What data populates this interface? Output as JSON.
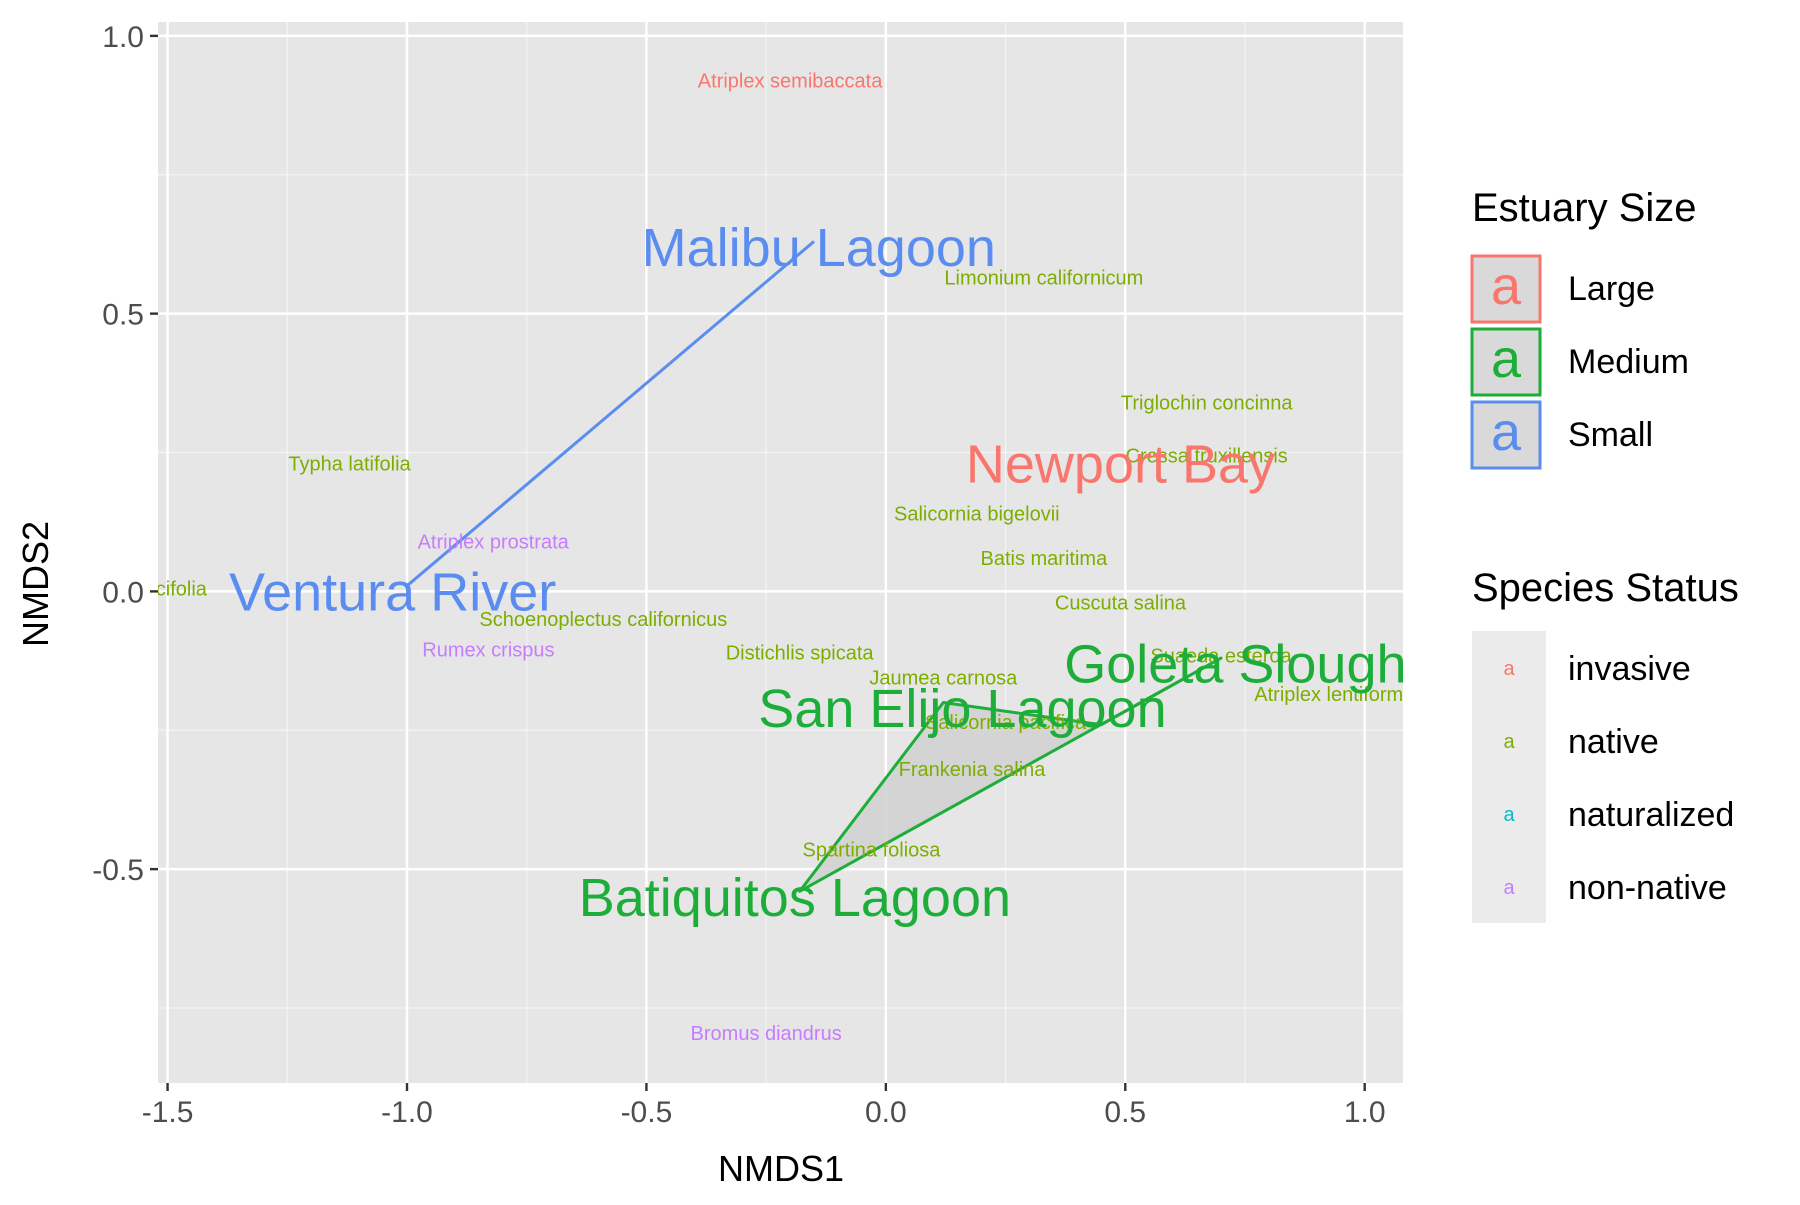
{
  "chart_data": {
    "type": "scatter",
    "xlabel": "NMDS1",
    "ylabel": "NMDS2",
    "xlim": [
      -1.52,
      1.08
    ],
    "ylim": [
      -0.885,
      1.025
    ],
    "x_ticks": [
      -1.5,
      -1.0,
      -0.5,
      0.0,
      0.5,
      1.0
    ],
    "x_tick_labels": [
      "-1.5",
      "-1.0",
      "-0.5",
      "0.0",
      "0.5",
      "1.0"
    ],
    "y_ticks": [
      -0.5,
      0.0,
      0.5,
      1.0
    ],
    "y_tick_labels": [
      "-0.5",
      "0.0",
      "0.5",
      "1.0"
    ],
    "grid": true,
    "legend_position": "right",
    "colors": {
      "Large": "#F8766D",
      "Medium": "#1DAE3A",
      "Small": "#5B8DF0",
      "invasive": "#F8766D",
      "native": "#7CAE00",
      "naturalized": "#00BFC4",
      "non-native": "#C77CFF",
      "panel": "#E6E6E6",
      "hull_fill": "#D0D0D0"
    },
    "hulls": [
      {
        "group": "Small",
        "points": [
          [
            -1.0,
            0.01
          ],
          [
            -0.15,
            0.63
          ]
        ]
      },
      {
        "group": "Medium",
        "points": [
          [
            -0.18,
            -0.54
          ],
          [
            0.7,
            -0.12
          ],
          [
            0.45,
            -0.24
          ],
          [
            0.12,
            -0.2
          ]
        ]
      }
    ],
    "sites": [
      {
        "label": "Malibu Lagoon",
        "size": "Small",
        "x": -0.14,
        "y": 0.62
      },
      {
        "label": "Ventura River",
        "size": "Small",
        "x": -1.03,
        "y": 0.0
      },
      {
        "label": "Newport Bay",
        "size": "Large",
        "x": 0.49,
        "y": 0.23
      },
      {
        "label": "Goleta Slough",
        "size": "Medium",
        "x": 0.73,
        "y": -0.13
      },
      {
        "label": "San Elijo Lagoon",
        "size": "Medium",
        "x": 0.16,
        "y": -0.21
      },
      {
        "label": "Batiquitos Lagoon",
        "size": "Medium",
        "x": -0.19,
        "y": -0.55
      }
    ],
    "species": [
      {
        "label": "Atriplex semibaccata",
        "status": "invasive",
        "x": -0.2,
        "y": 0.92
      },
      {
        "label": "Limonium californicum",
        "status": "native",
        "x": 0.33,
        "y": 0.565
      },
      {
        "label": "Triglochin concinna",
        "status": "native",
        "x": 0.67,
        "y": 0.34
      },
      {
        "label": "Cressa truxillensis",
        "status": "native",
        "x": 0.67,
        "y": 0.245
      },
      {
        "label": "Typha latifolia",
        "status": "native",
        "x": -1.12,
        "y": 0.23
      },
      {
        "label": "Salicornia bigelovii",
        "status": "native",
        "x": 0.19,
        "y": 0.14
      },
      {
        "label": "Atriplex prostrata",
        "status": "non-native",
        "x": -0.82,
        "y": 0.09
      },
      {
        "label": "Batis maritima",
        "status": "native",
        "x": 0.33,
        "y": 0.06
      },
      {
        "label": "Baccharis salicifolia",
        "status": "native",
        "x": -1.6,
        "y": 0.005
      },
      {
        "label": "Cuscuta salina",
        "status": "native",
        "x": 0.49,
        "y": -0.02
      },
      {
        "label": "Schoenoplectus californicus",
        "status": "native",
        "x": -0.59,
        "y": -0.05
      },
      {
        "label": "Rumex crispus",
        "status": "non-native",
        "x": -0.83,
        "y": -0.105
      },
      {
        "label": "Distichlis spicata",
        "status": "native",
        "x": -0.18,
        "y": -0.11
      },
      {
        "label": "Suaeda esteroa",
        "status": "native",
        "x": 0.7,
        "y": -0.115
      },
      {
        "label": "Jaumea carnosa",
        "status": "native",
        "x": 0.12,
        "y": -0.155
      },
      {
        "label": "Atriplex lentiformis",
        "status": "native",
        "x": 0.94,
        "y": -0.185
      },
      {
        "label": "Salicornia pacifica",
        "status": "native",
        "x": 0.25,
        "y": -0.235
      },
      {
        "label": "Frankenia salina",
        "status": "native",
        "x": 0.18,
        "y": -0.32
      },
      {
        "label": "Spartina foliosa",
        "status": "native",
        "x": -0.03,
        "y": -0.465
      },
      {
        "label": "Bromus diandrus",
        "status": "non-native",
        "x": -0.25,
        "y": -0.795
      }
    ],
    "legends": [
      {
        "title": "Estuary Size",
        "key_glyph": "a",
        "items": [
          {
            "label": "Large",
            "color_key": "Large"
          },
          {
            "label": "Medium",
            "color_key": "Medium"
          },
          {
            "label": "Small",
            "color_key": "Small"
          }
        ]
      },
      {
        "title": "Species Status",
        "key_glyph": "a",
        "items": [
          {
            "label": "invasive",
            "color_key": "invasive"
          },
          {
            "label": "native",
            "color_key": "native"
          },
          {
            "label": "naturalized",
            "color_key": "naturalized"
          },
          {
            "label": "non-native",
            "color_key": "non-native"
          }
        ]
      }
    ]
  }
}
